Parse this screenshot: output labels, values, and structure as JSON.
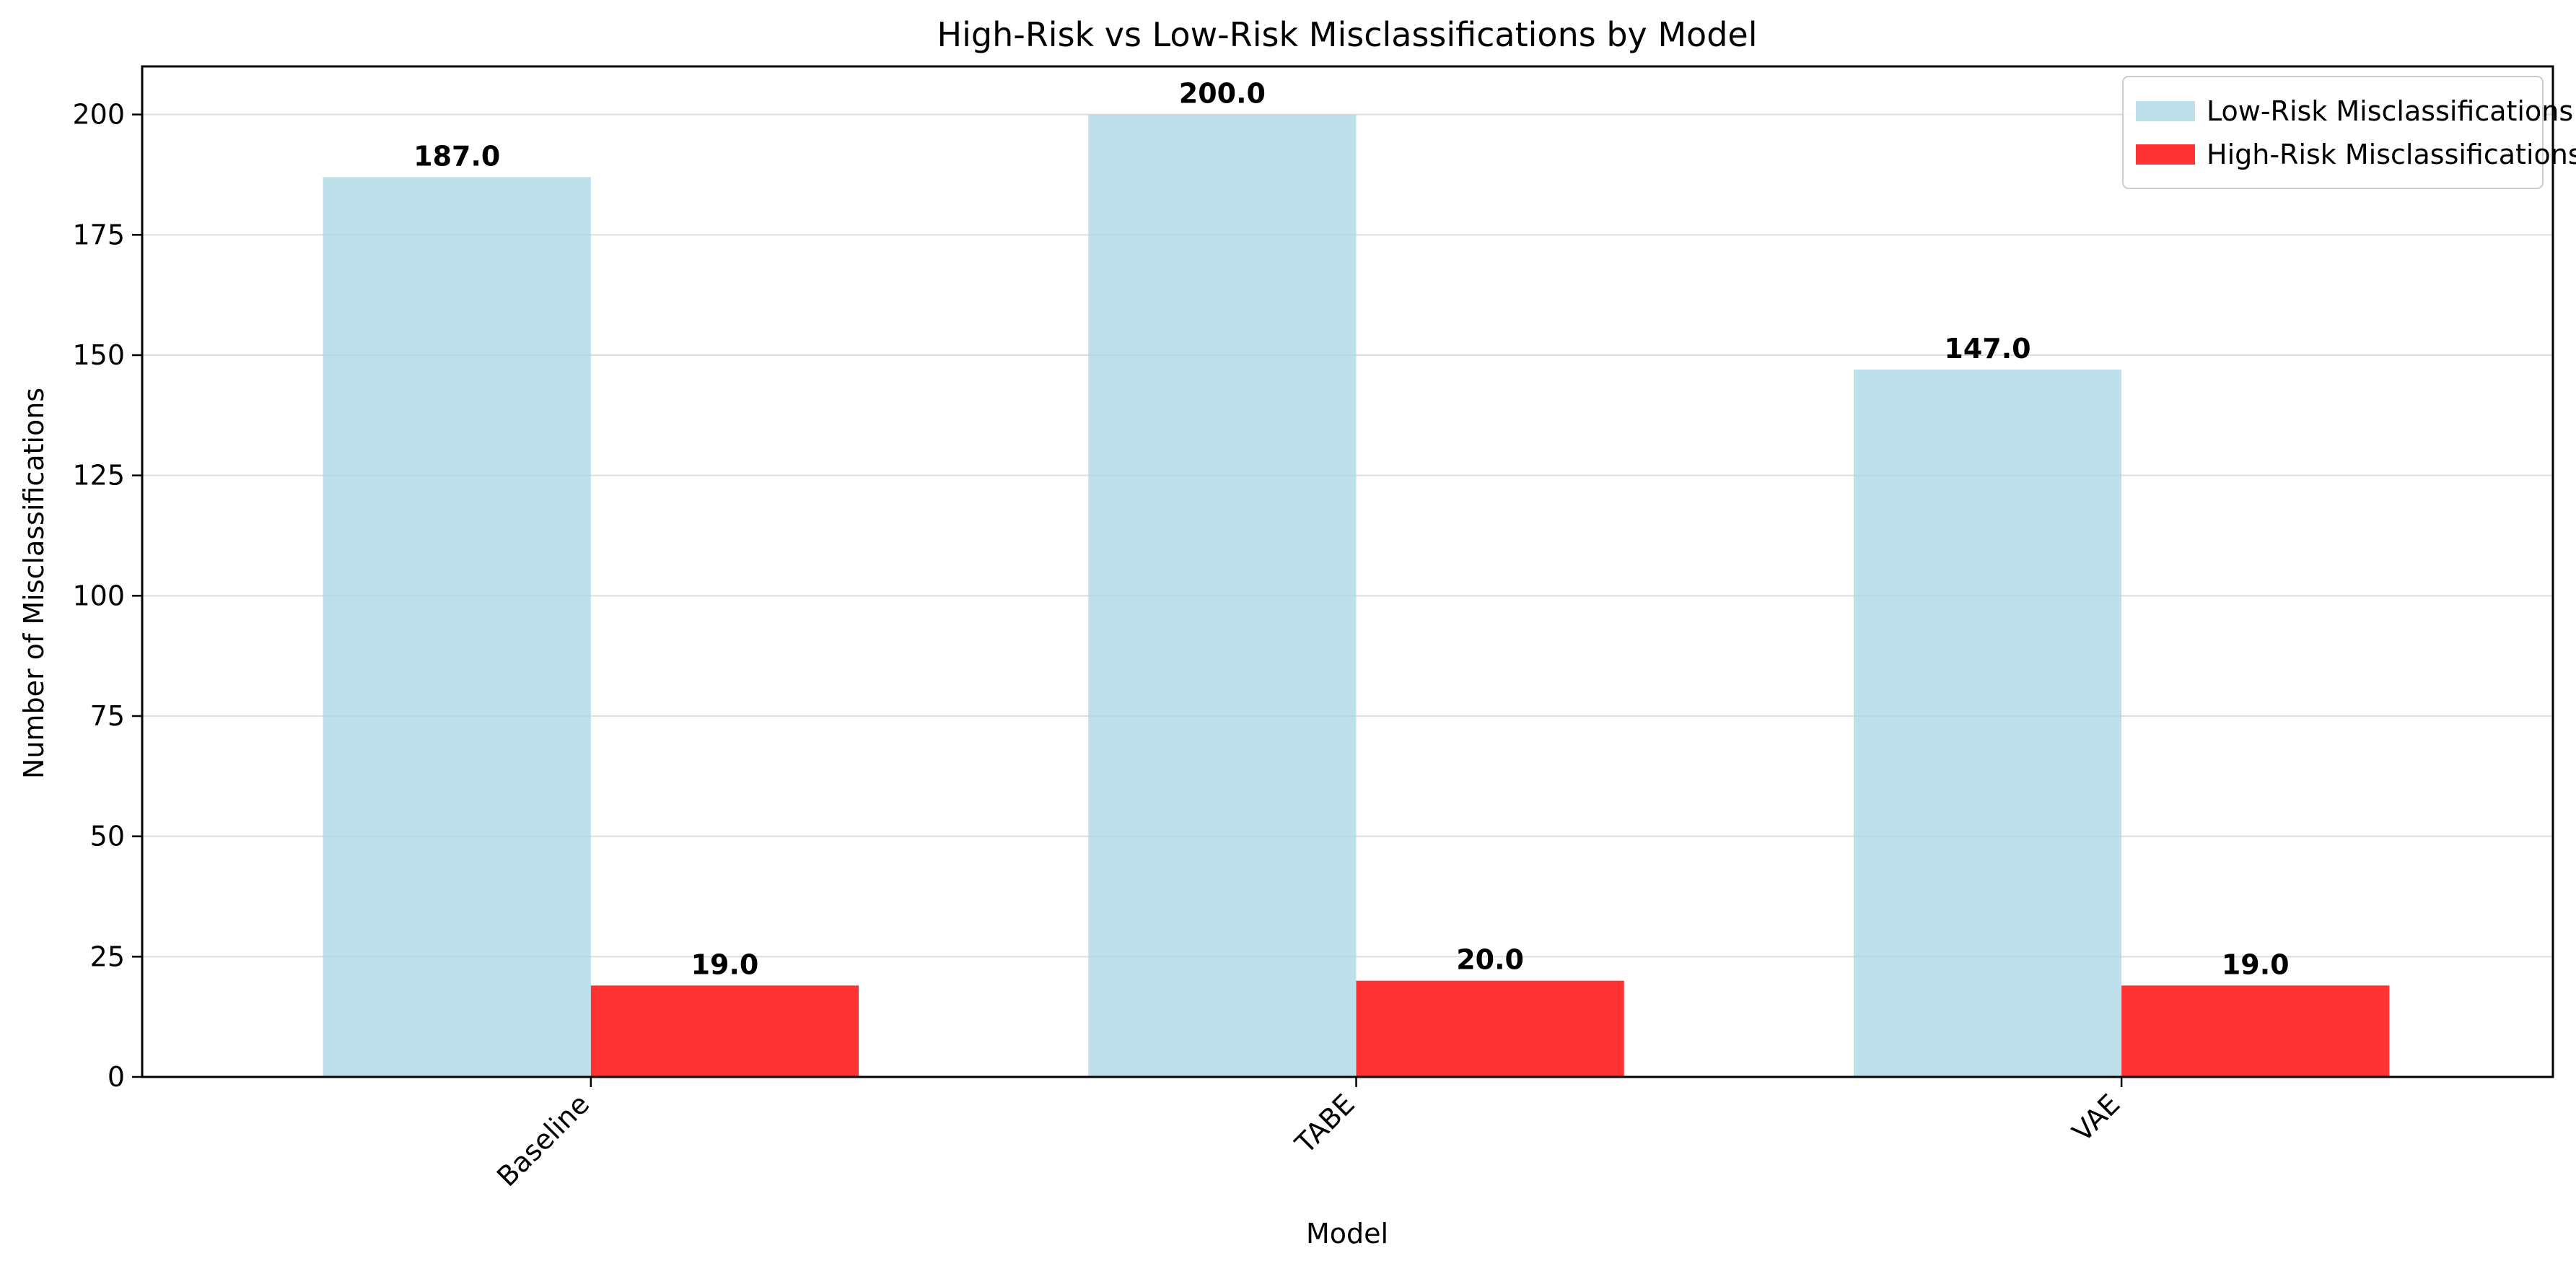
{
  "chart_data": {
    "type": "bar",
    "title": "High-Risk vs Low-Risk Misclassifications by Model",
    "xlabel": "Model",
    "ylabel": "Number of Misclassifications",
    "categories": [
      "Baseline",
      "TABE",
      "VAE"
    ],
    "series": [
      {
        "name": "Low-Risk Misclassifications",
        "values": [
          187.0,
          200.0,
          147.0
        ],
        "color": "#add8e6",
        "value_labels": [
          "187.0",
          "200.0",
          "147.0"
        ]
      },
      {
        "name": "High-Risk Misclassifications",
        "values": [
          19.0,
          20.0,
          19.0
        ],
        "color": "#ff0000",
        "value_labels": [
          "19.0",
          "20.0",
          "19.0"
        ]
      }
    ],
    "ylim": [
      0,
      210
    ],
    "yticks": [
      0,
      25,
      50,
      75,
      100,
      125,
      150,
      175,
      200
    ],
    "ytick_labels": [
      "0",
      "25",
      "50",
      "75",
      "100",
      "125",
      "150",
      "175",
      "200"
    ],
    "grid": "horizontal",
    "legend_position": "top-right"
  }
}
